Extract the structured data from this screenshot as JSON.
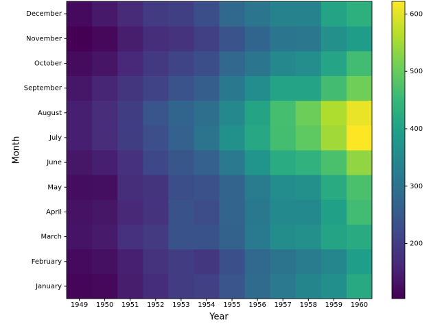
{
  "chart_data": {
    "type": "heatmap",
    "x_label": "Year",
    "y_label": "Month",
    "x": [
      "1949",
      "1950",
      "1951",
      "1952",
      "1953",
      "1954",
      "1955",
      "1956",
      "1957",
      "1958",
      "1959",
      "1960"
    ],
    "y": [
      "January",
      "February",
      "March",
      "April",
      "May",
      "June",
      "July",
      "August",
      "September",
      "October",
      "November",
      "December"
    ],
    "values": [
      [
        112,
        115,
        145,
        171,
        196,
        204,
        242,
        284,
        315,
        340,
        360,
        417
      ],
      [
        118,
        126,
        150,
        180,
        196,
        188,
        233,
        277,
        301,
        318,
        342,
        391
      ],
      [
        132,
        141,
        178,
        193,
        236,
        235,
        267,
        317,
        356,
        362,
        406,
        419
      ],
      [
        129,
        135,
        163,
        181,
        235,
        227,
        269,
        313,
        348,
        348,
        396,
        461
      ],
      [
        121,
        125,
        172,
        183,
        229,
        234,
        270,
        318,
        355,
        363,
        420,
        472
      ],
      [
        135,
        149,
        178,
        218,
        243,
        264,
        315,
        374,
        422,
        435,
        472,
        535
      ],
      [
        148,
        170,
        199,
        230,
        264,
        302,
        364,
        413,
        465,
        491,
        548,
        622
      ],
      [
        148,
        170,
        199,
        242,
        272,
        293,
        347,
        405,
        467,
        505,
        559,
        606
      ],
      [
        136,
        158,
        184,
        209,
        237,
        259,
        312,
        355,
        404,
        404,
        463,
        508
      ],
      [
        119,
        133,
        162,
        191,
        211,
        229,
        274,
        306,
        347,
        359,
        407,
        461
      ],
      [
        104,
        114,
        146,
        172,
        180,
        203,
        237,
        271,
        305,
        310,
        362,
        390
      ],
      [
        118,
        140,
        166,
        194,
        201,
        229,
        278,
        306,
        336,
        337,
        405,
        432
      ]
    ],
    "colormap": "viridis",
    "clim": [
      104,
      622
    ],
    "cticks": [
      200,
      300,
      400,
      500,
      600
    ]
  }
}
